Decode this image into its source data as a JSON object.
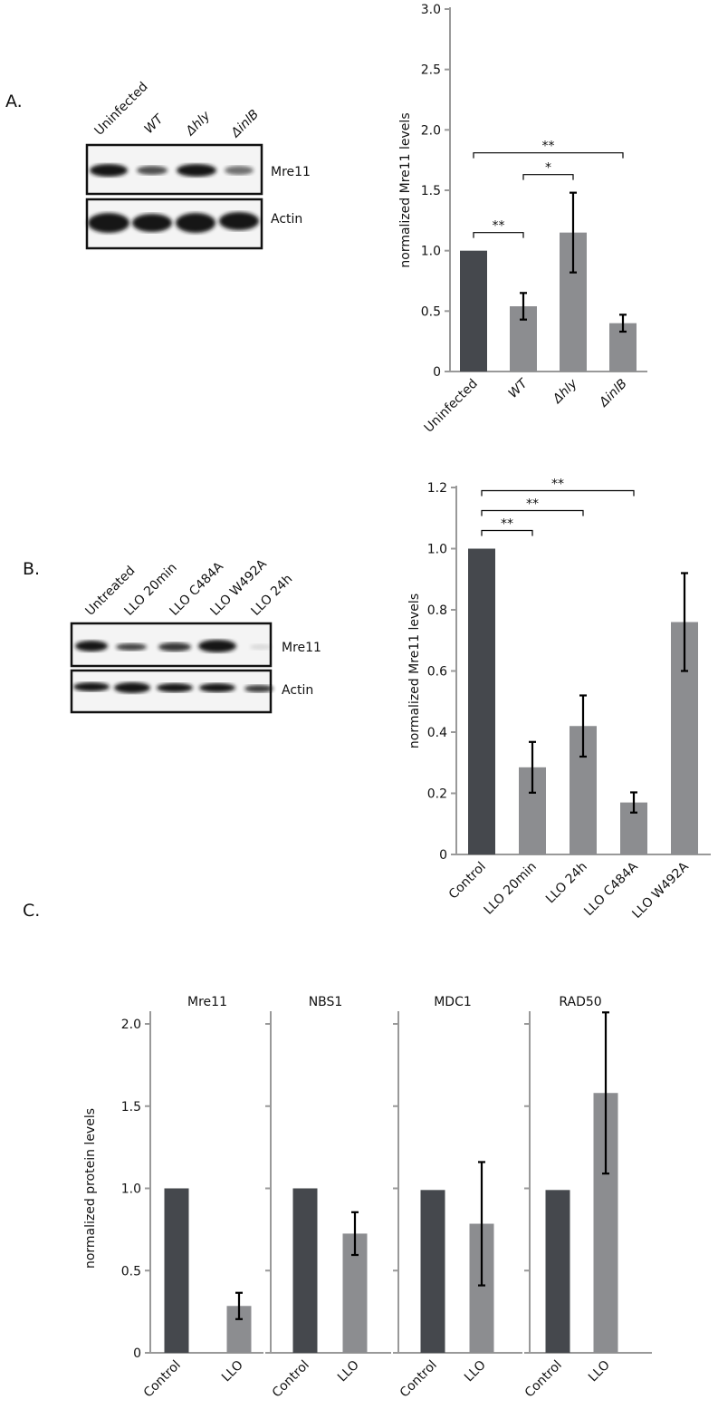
{
  "panel_labels": [
    "A.",
    "B.",
    "C."
  ],
  "blots": [
    {
      "lanes": [
        "Uninfected",
        "WT",
        "Δhly",
        "ΔinlB"
      ],
      "rows": [
        "Mre11",
        "Actin"
      ]
    },
    {
      "lanes": [
        "Untreated",
        "LLO 20min",
        "LLO C484A",
        "LLO W492A",
        "LLO 24h"
      ],
      "rows": [
        "Mre11",
        "Actin"
      ]
    }
  ],
  "chart_data": [
    {
      "type": "bar",
      "ylabel": "normalized Mre11 levels",
      "categories": [
        "Uninfected",
        "WT",
        "Δhly",
        "ΔinlB"
      ],
      "values": [
        1.0,
        0.54,
        1.15,
        0.4
      ],
      "errors": [
        null,
        0.11,
        0.33,
        0.07
      ],
      "colors": [
        "#45484d",
        "#8c8d90",
        "#8c8d90",
        "#8c8d90"
      ],
      "ylim": [
        0,
        3
      ],
      "yticks": [
        0,
        0.5,
        {
          "value": 1,
          "label": "1.0"
        },
        1.5,
        {
          "value": 2,
          "label": "2.0"
        },
        2.5,
        {
          "value": 3,
          "label": "3.0"
        }
      ],
      "brackets": [
        {
          "between": [
            "Uninfected",
            "WT"
          ],
          "label": "**"
        },
        {
          "between": [
            "WT",
            "Δhly"
          ],
          "label": "*"
        },
        {
          "between": [
            "Uninfected",
            "ΔinlB"
          ],
          "label": "**"
        }
      ]
    },
    {
      "type": "bar",
      "ylabel": "normalized Mre11 levels",
      "categories": [
        "Control",
        "LLO 20min",
        "LLO 24h",
        "LLO C484A",
        "LLO W492A"
      ],
      "values": [
        1.0,
        0.285,
        0.42,
        0.17,
        0.76
      ],
      "errors": [
        null,
        0.083,
        0.1,
        0.033,
        0.16
      ],
      "colors": [
        "#45484d",
        "#8c8d90",
        "#8c8d90",
        "#8c8d90",
        "#8c8d90"
      ],
      "ylim": [
        0,
        1.2
      ],
      "yticks": [
        0,
        0.2,
        0.4,
        0.6,
        0.8,
        {
          "value": 1,
          "label": "1.0"
        },
        1.2
      ],
      "brackets": [
        {
          "between": [
            "Control",
            "LLO 20min"
          ],
          "label": "**"
        },
        {
          "between": [
            "Control",
            "LLO 24h"
          ],
          "label": "**"
        },
        {
          "between": [
            "Control",
            "LLO C484A"
          ],
          "label": "**"
        }
      ]
    },
    {
      "type": "bar",
      "title": "Mre11",
      "ylabel": "normalized protein levels",
      "categories": [
        "Control",
        "LLO"
      ],
      "values": [
        1.0,
        0.285
      ],
      "errors": [
        null,
        0.08
      ],
      "colors": [
        "#45484d",
        "#8c8d90"
      ],
      "ylim": [
        0,
        2
      ],
      "yticks": [
        0,
        0.5,
        {
          "value": 1,
          "label": "1.0"
        },
        1.5,
        {
          "value": 2,
          "label": "2.0"
        }
      ]
    },
    {
      "type": "bar",
      "title": "NBS1",
      "categories": [
        "Control",
        "LLO"
      ],
      "values": [
        1.0,
        0.725
      ],
      "errors": [
        null,
        0.13
      ],
      "colors": [
        "#45484d",
        "#8c8d90"
      ],
      "ylim": [
        0,
        2
      ],
      "yticks": [
        0,
        0.5,
        1,
        1.5,
        2
      ],
      "tick_labels": false
    },
    {
      "type": "bar",
      "title": "MDC1",
      "categories": [
        "Control",
        "LLO"
      ],
      "values": [
        0.99,
        0.785
      ],
      "errors": [
        null,
        0.375
      ],
      "colors": [
        "#45484d",
        "#8c8d90"
      ],
      "ylim": [
        0,
        2
      ],
      "yticks": [
        0,
        0.5,
        1,
        1.5,
        2
      ],
      "tick_labels": false
    },
    {
      "type": "bar",
      "title": "RAD50",
      "categories": [
        "Control",
        "LLO"
      ],
      "values": [
        0.99,
        1.58
      ],
      "errors": [
        null,
        0.49
      ],
      "colors": [
        "#45484d",
        "#8c8d90"
      ],
      "ylim": [
        0,
        2
      ],
      "yticks": [
        0,
        0.5,
        1,
        1.5,
        2
      ],
      "tick_labels": false
    }
  ]
}
